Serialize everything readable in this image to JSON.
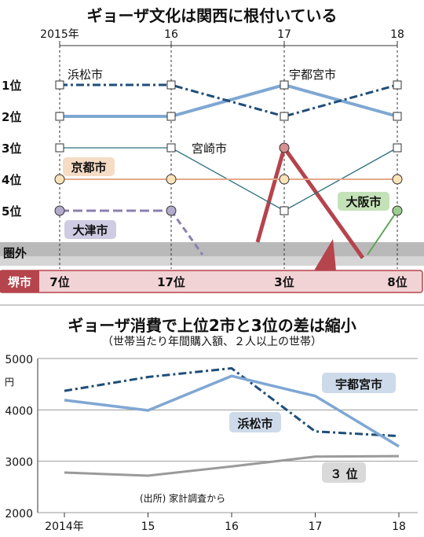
{
  "chart_data": [
    {
      "type": "line",
      "title": "ギョーザ文化は関西に根付いている",
      "categories": [
        "2015年",
        "16",
        "17",
        "18"
      ],
      "y_tick_labels": [
        "1位",
        "2位",
        "3位",
        "4位",
        "5位"
      ],
      "out_of_rank_label": "圏外",
      "series": [
        {
          "name": "浜松市",
          "values": [
            1,
            1,
            2,
            1
          ],
          "color": "#1f4e79"
        },
        {
          "name": "宇都宮市",
          "values": [
            2,
            2,
            1,
            2
          ],
          "color": "#7fa7d3"
        },
        {
          "name": "宮崎市",
          "values": [
            3,
            3,
            5,
            3
          ],
          "color": "#2d6f7a"
        },
        {
          "name": "京都市",
          "values": [
            4,
            4,
            4,
            4
          ],
          "color": "#e5a98a"
        },
        {
          "name": "大津市",
          "values": [
            5,
            5,
            null,
            null
          ],
          "color": "#8d7fb0"
        },
        {
          "name": "大阪市",
          "values": [
            null,
            null,
            null,
            5
          ],
          "color": "#5fa35a"
        }
      ],
      "sakai": {
        "name": "堺市",
        "ranks": [
          "7位",
          "17位",
          "3位",
          "8位"
        ],
        "values": [
          7,
          17,
          3,
          8
        ],
        "color": "#b5444c"
      }
    },
    {
      "type": "line",
      "title": "ギョーザ消費で上位2市と3位の差は縮小",
      "subtitle": "（世帯当たり年間購入額、２人以上の世帯）",
      "categories": [
        "2014年",
        "15",
        "16",
        "17",
        "18"
      ],
      "x": [
        2014,
        2015,
        2016,
        2017,
        2018
      ],
      "ylabel": "円",
      "ylim": [
        2000,
        5000
      ],
      "yticks": [
        2000,
        3000,
        4000,
        5000
      ],
      "ytick_labels": [
        "2000",
        "3000",
        "4000",
        "5000"
      ],
      "series": [
        {
          "name": "宇都宮市",
          "values": [
            4370,
            4640,
            4810,
            3580,
            3490
          ],
          "color": "#1f4e79"
        },
        {
          "name": "浜松市",
          "values": [
            4190,
            3990,
            4660,
            4270,
            3290
          ],
          "color": "#7fa7d3"
        },
        {
          "name": "３ 位",
          "values": [
            2780,
            2720,
            2900,
            3090,
            3100
          ],
          "color": "#9a9a9a"
        }
      ],
      "source": "(出所) 家計調査から"
    }
  ]
}
